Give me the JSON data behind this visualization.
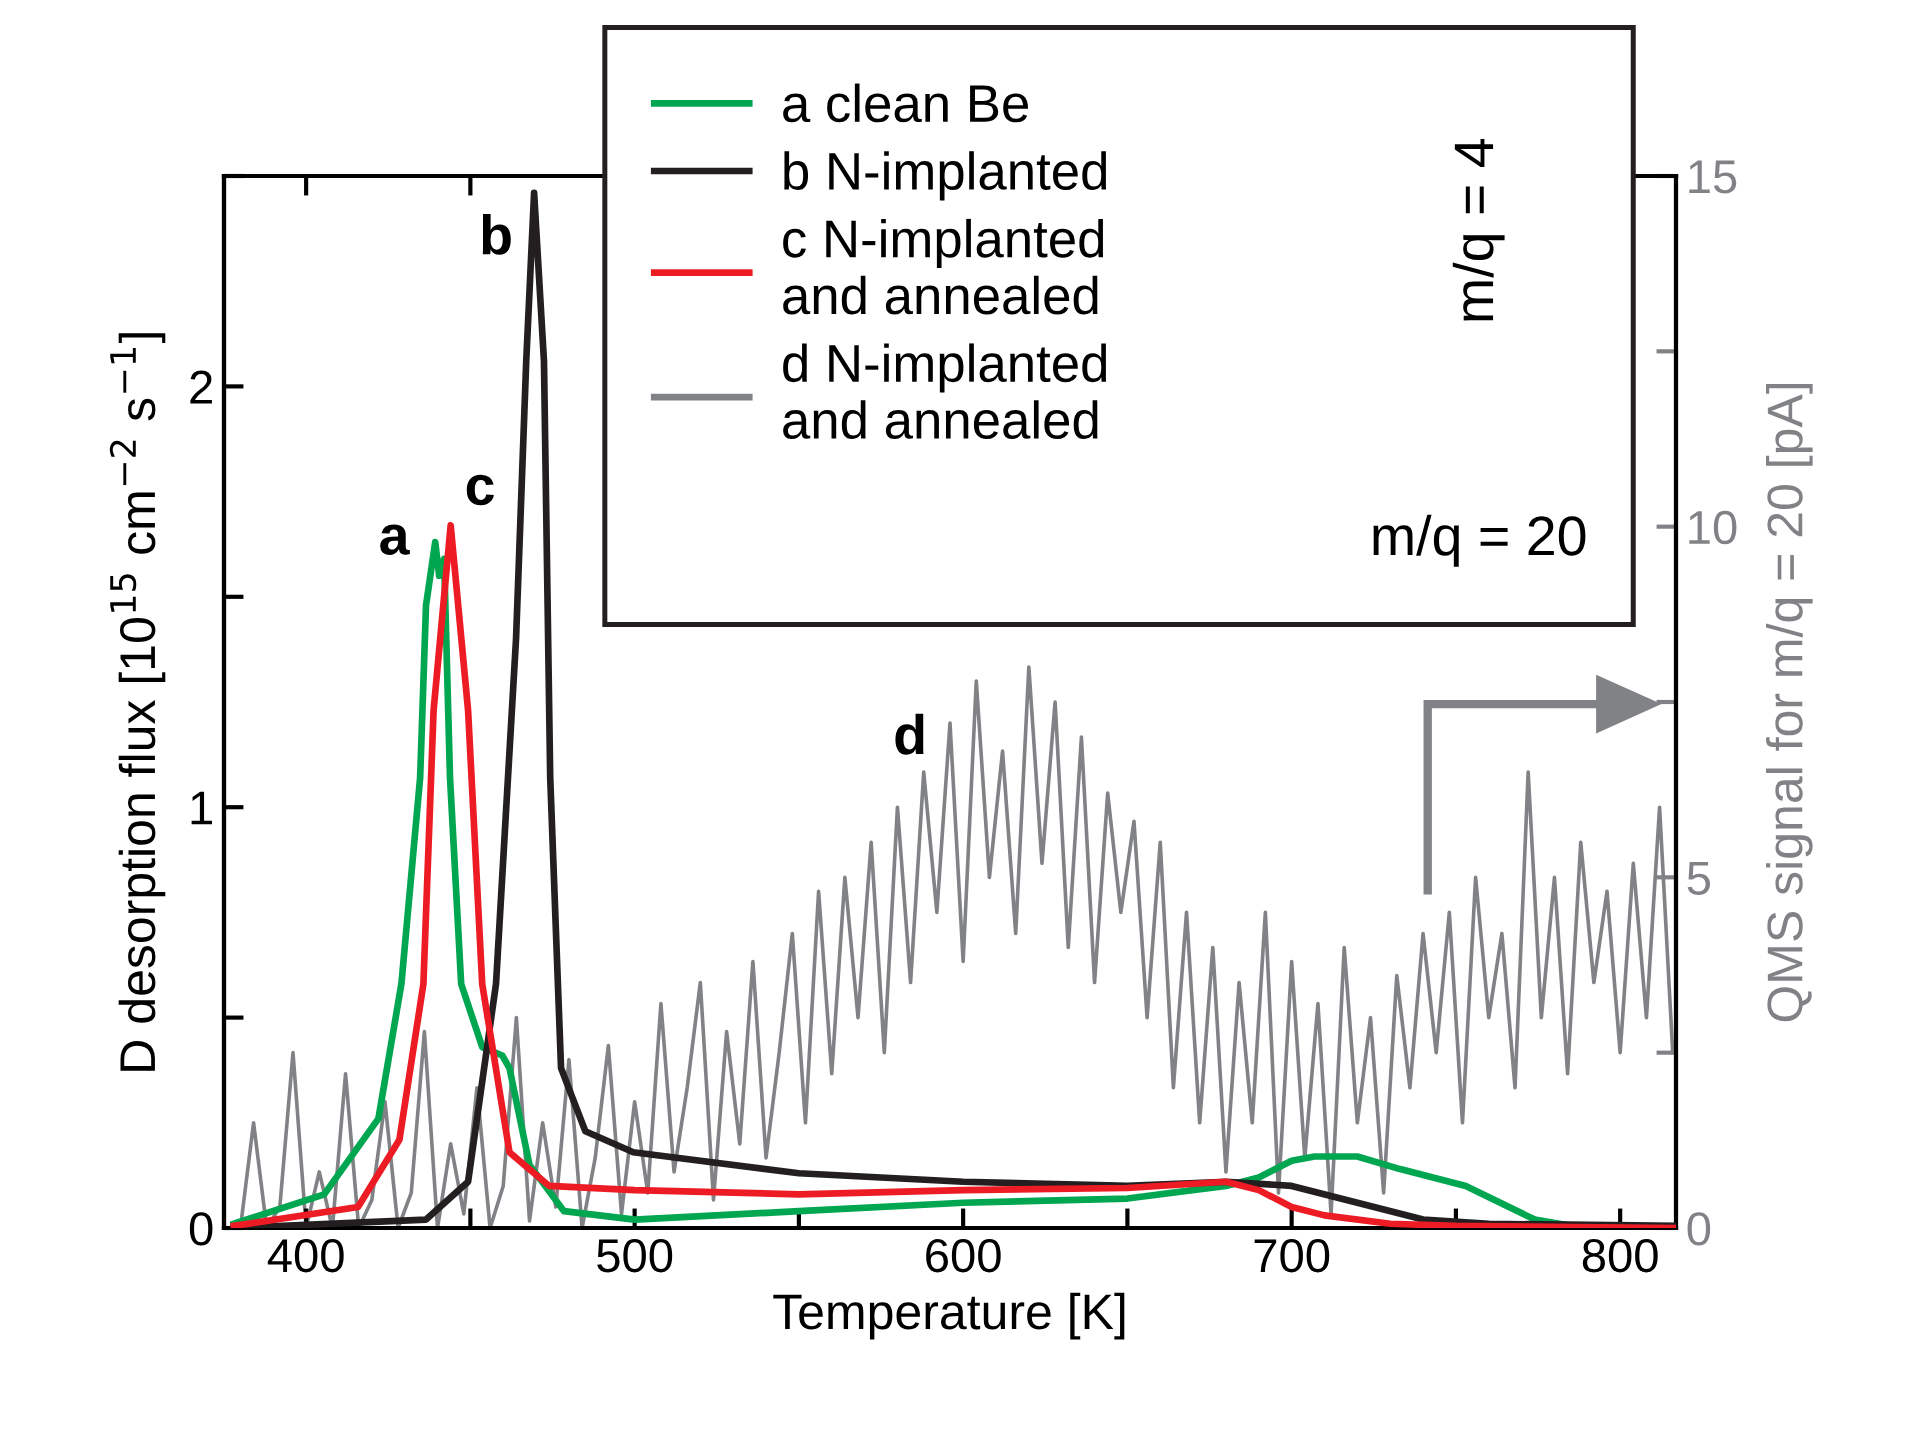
{
  "chart_data": {
    "type": "line",
    "xlabel": "Temperature [K]",
    "ylabel": "D desorption flux [10$^{15}$ cm$^{−2}$ s$^{−1}$]",
    "y2label": "QMS signal for m/q = 20 [pA]",
    "xlim": [
      375,
      817
    ],
    "xticks": [
      400,
      {
        "value": 450,
        "label": null
      },
      500,
      {
        "value": 550,
        "label": null
      },
      600,
      {
        "value": 650,
        "label": null
      },
      700,
      {
        "value": 750,
        "label": null
      },
      800
    ],
    "ylim": [
      0,
      2.5
    ],
    "yticks": [
      0,
      {
        "value": 0.5,
        "label": null
      },
      1,
      {
        "value": 1.5,
        "label": null
      },
      2,
      {
        "value": 2.5,
        "label": null
      }
    ],
    "y2lim": [
      0,
      15
    ],
    "y2ticks": [
      0,
      {
        "value": 2.5,
        "label": null
      },
      5,
      {
        "value": 7.5,
        "label": null
      },
      10,
      {
        "value": 12.5,
        "label": null
      },
      15
    ],
    "grid": false,
    "legend": "top",
    "line_style": "solid",
    "marker": "none",
    "series": [
      {
        "name": "a clean Be",
        "color": "#00a650",
        "x": [
          378,
          405.5,
          422,
          429,
          434.7,
          436.5,
          439.3,
          440.5,
          442,
          443.8,
          447.2,
          453.6,
          459.7,
          461.9,
          468,
          478.5,
          500,
          550,
          600,
          650,
          680,
          690,
          700,
          707,
          720,
          733,
          753,
          774,
          785,
          817
        ],
        "values": [
          0.01,
          0.08,
          0.26,
          0.58,
          1.07,
          1.48,
          1.63,
          1.55,
          1.59,
          1.07,
          0.58,
          0.43,
          0.41,
          0.38,
          0.15,
          0.04,
          0.02,
          0.04,
          0.06,
          0.07,
          0.1,
          0.12,
          0.16,
          0.17,
          0.17,
          0.14,
          0.1,
          0.02,
          0.005,
          0
        ]
      },
      {
        "name": "b N-implanted",
        "color": "#231f20",
        "x": [
          378,
          436.5,
          449.3,
          457.8,
          463.9,
          467,
          469.4,
          472.4,
          474.3,
          477.6,
          485,
          499.6,
          550,
          600,
          650,
          680,
          700,
          720,
          740,
          760,
          817
        ],
        "values": [
          0,
          0.02,
          0.11,
          0.58,
          1.4,
          2.06,
          2.46,
          2.06,
          1.07,
          0.38,
          0.23,
          0.18,
          0.13,
          0.11,
          0.1,
          0.11,
          0.1,
          0.06,
          0.02,
          0.01,
          0.005
        ]
      },
      {
        "name": "c N-implanted\nand annealed",
        "color": "#ed1c24",
        "x": [
          378,
          415.8,
          428.4,
          435.7,
          438.8,
          444,
          449.3,
          453.6,
          461.9,
          474,
          500,
          550,
          600,
          650,
          680,
          690,
          700,
          710,
          730,
          750,
          817
        ],
        "values": [
          0.005,
          0.05,
          0.21,
          0.58,
          1.23,
          1.67,
          1.23,
          0.58,
          0.18,
          0.1,
          0.09,
          0.08,
          0.09,
          0.095,
          0.11,
          0.09,
          0.05,
          0.03,
          0.01,
          0.005,
          0
        ]
      },
      {
        "name": "d N-implanted\nand annealed",
        "color": "#808285",
        "axis": "y2",
        "x": [
          380,
          384,
          388,
          392,
          396,
          400,
          404,
          408,
          412,
          416,
          420,
          424,
          428,
          432,
          436,
          440,
          444,
          448,
          452,
          456,
          460,
          464,
          468,
          472,
          476,
          480,
          484,
          488,
          492,
          496,
          500,
          504,
          508,
          512,
          516,
          520,
          524,
          528,
          532,
          536,
          540,
          544,
          548,
          552,
          556,
          560,
          564,
          568,
          572,
          576,
          580,
          584,
          588,
          592,
          596,
          600,
          604,
          608,
          612,
          616,
          620,
          624,
          628,
          632,
          636,
          640,
          644,
          648,
          652,
          656,
          660,
          664,
          668,
          672,
          676,
          680,
          684,
          688,
          692,
          696,
          700,
          704,
          708,
          712,
          716,
          720,
          724,
          728,
          732,
          736,
          740,
          744,
          748,
          752,
          756,
          760,
          764,
          768,
          772,
          776,
          780,
          784,
          788,
          792,
          796,
          800,
          804,
          808,
          812,
          816
        ],
        "values": [
          0,
          1.5,
          0,
          0.3,
          2.5,
          0,
          0.8,
          0,
          2.2,
          0,
          0.4,
          1.8,
          0,
          0.5,
          2.8,
          0,
          1.2,
          0.2,
          2.0,
          0,
          0.6,
          3.0,
          0.1,
          1.5,
          0.3,
          2.4,
          0,
          1.0,
          2.6,
          0.2,
          1.8,
          0.5,
          3.2,
          0.8,
          2.0,
          3.5,
          0.4,
          2.8,
          1.2,
          3.8,
          1.0,
          2.5,
          4.2,
          1.5,
          4.8,
          2.2,
          5.0,
          3.0,
          5.5,
          2.5,
          6.0,
          3.5,
          6.5,
          4.5,
          7.2,
          3.8,
          7.8,
          5.0,
          6.8,
          4.2,
          8.0,
          5.2,
          7.5,
          4.0,
          7.0,
          3.5,
          6.2,
          4.5,
          5.8,
          3.0,
          5.5,
          2.0,
          4.5,
          1.5,
          4.0,
          0.8,
          3.5,
          1.5,
          4.5,
          0.5,
          3.8,
          1.0,
          3.2,
          0.2,
          4.0,
          1.5,
          3.0,
          0.5,
          3.6,
          2.0,
          4.2,
          2.5,
          4.5,
          1.5,
          5.0,
          3.0,
          4.2,
          2.0,
          6.5,
          3.0,
          5.0,
          2.2,
          5.5,
          3.5,
          4.8,
          2.5,
          5.2,
          3.0,
          6.0,
          2.5
        ]
      }
    ],
    "annotations": [
      "a",
      "b",
      "c",
      "d",
      "m/q = 4",
      "m/q = 20"
    ]
  }
}
